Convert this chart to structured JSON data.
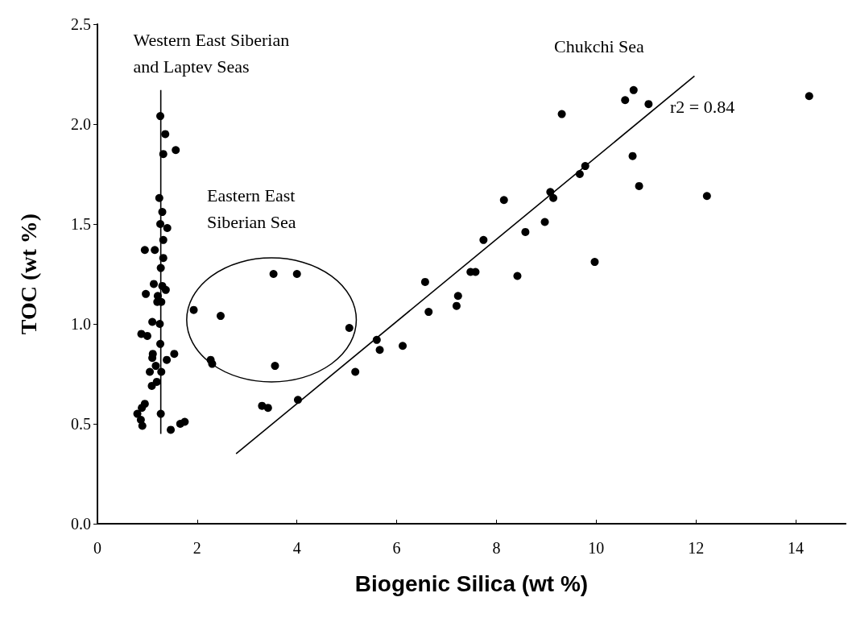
{
  "chart_data": {
    "type": "scatter",
    "xlabel": "Biogenic Silica (wt %)",
    "ylabel": "TOC (wt %)",
    "xlim": [
      0,
      15
    ],
    "xticks": [
      0,
      2,
      4,
      6,
      8,
      10,
      12,
      14
    ],
    "ylim": [
      0,
      2.5
    ],
    "yticks": [
      {
        "value": 0,
        "label": "0.0"
      },
      {
        "value": 0.5,
        "label": "0.5"
      },
      {
        "value": 1,
        "label": "1.0"
      },
      {
        "value": 1.5,
        "label": "1.5"
      },
      {
        "value": 2,
        "label": "2.0"
      },
      {
        "value": 2.5,
        "label": "2.5"
      }
    ],
    "grid": false,
    "marker": "circle",
    "annotations": [
      "Western East Siberian and Laptev Seas",
      "Eastern East Siberian Sea",
      "Chukchi Sea",
      "r2 = 0.84"
    ],
    "series": [
      {
        "color": "#000000",
        "x": [
          1.26,
          1.36,
          1.57,
          1.32,
          1.24,
          1.3,
          1.26,
          1.4,
          1.32,
          0.95,
          1.15,
          1.32,
          1.27,
          1.13,
          1.3,
          1.37,
          0.97,
          1.21,
          1.2,
          1.28,
          1.1,
          1.25,
          0.88,
          1.0,
          1.26,
          1.54,
          1.11,
          1.1,
          1.39,
          1.17,
          1.05,
          1.28,
          1.19,
          1.09,
          0.95,
          0.89,
          0.8,
          1.27,
          0.87,
          0.9,
          1.47,
          1.66,
          1.75
        ],
        "values": [
          2.04,
          1.95,
          1.87,
          1.85,
          1.63,
          1.56,
          1.5,
          1.48,
          1.42,
          1.37,
          1.37,
          1.33,
          1.28,
          1.2,
          1.19,
          1.17,
          1.15,
          1.14,
          1.11,
          1.11,
          1.01,
          1.0,
          0.95,
          0.94,
          0.9,
          0.85,
          0.85,
          0.83,
          0.82,
          0.79,
          0.76,
          0.76,
          0.71,
          0.69,
          0.6,
          0.58,
          0.55,
          0.55,
          0.52,
          0.49,
          0.47,
          0.5,
          0.51
        ]
      },
      {
        "color": "#000000",
        "x": [
          1.93,
          2.47,
          2.27,
          2.3,
          3.53,
          4.0,
          3.56,
          5.05
        ],
        "values": [
          1.07,
          1.04,
          0.82,
          0.8,
          1.25,
          1.25,
          0.79,
          0.98
        ]
      },
      {
        "color": "#000000",
        "x": [
          3.3,
          3.42,
          4.02,
          5.17,
          5.6,
          5.66,
          6.12,
          6.57,
          6.64,
          7.2,
          7.23,
          7.48,
          7.58,
          7.74,
          8.15,
          8.42,
          8.58,
          8.97,
          9.08,
          9.14,
          9.31,
          9.67,
          9.78,
          9.97,
          10.58,
          10.75,
          10.73,
          10.86,
          11.05,
          12.22,
          14.27
        ],
        "values": [
          0.59,
          0.58,
          0.62,
          0.76,
          0.92,
          0.87,
          0.89,
          1.21,
          1.06,
          1.09,
          1.14,
          1.26,
          1.26,
          1.42,
          1.62,
          1.24,
          1.46,
          1.51,
          1.66,
          1.63,
          2.05,
          1.75,
          1.79,
          1.31,
          2.12,
          2.17,
          1.84,
          1.69,
          2.1,
          1.64,
          2.14
        ]
      },
      {
        "type": "line",
        "color": "#000000",
        "marker": "none",
        "x": [
          1.27,
          1.27
        ],
        "values": [
          0.45,
          2.17
        ]
      },
      {
        "type": "line",
        "color": "#000000",
        "marker": "none",
        "x": [
          2.78,
          11.97
        ],
        "values": [
          0.35,
          2.24
        ]
      }
    ]
  }
}
